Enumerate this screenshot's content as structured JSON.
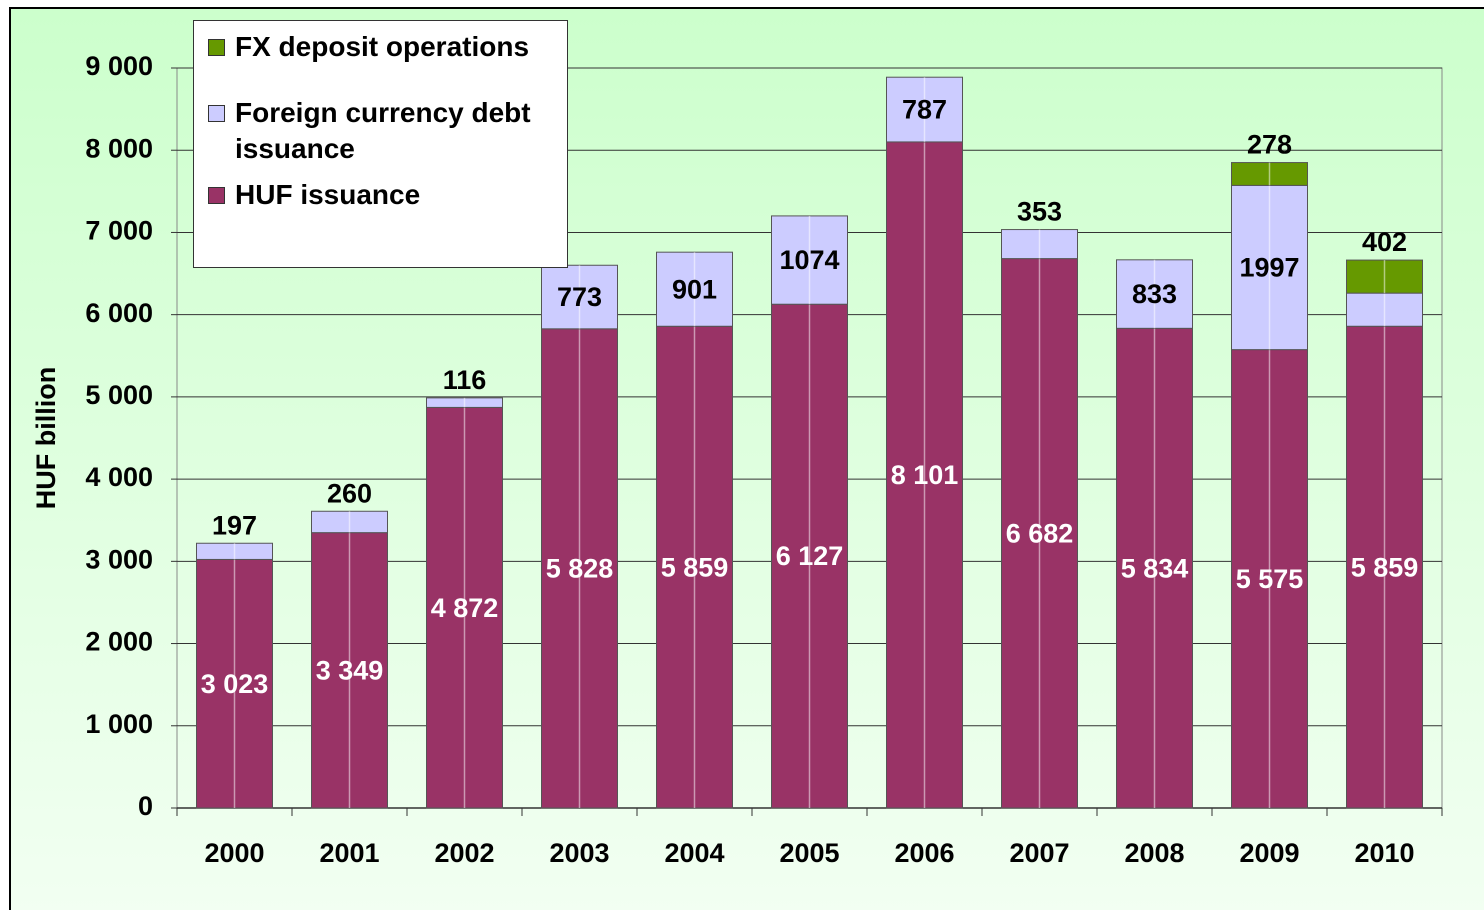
{
  "chart_data": {
    "type": "stacked-bar",
    "y_axis_label": "HUF billion",
    "categories": [
      "2000",
      "2001",
      "2002",
      "2003",
      "2004",
      "2005",
      "2006",
      "2007",
      "2008",
      "2009",
      "2010"
    ],
    "series": [
      {
        "name": "HUF issuance",
        "color": "#993366",
        "values": [
          3023,
          3349,
          4872,
          5828,
          5859,
          6127,
          8101,
          6682,
          5834,
          5575,
          5859
        ],
        "value_labels": [
          "3 023",
          "3 349",
          "4 872",
          "5 828",
          "5 859",
          "6 127",
          "8 101",
          "6 682",
          "5 834",
          "5 575",
          "5 859"
        ]
      },
      {
        "name": "Foreign currency debt issuance",
        "color": "#ccccff",
        "values": [
          197,
          260,
          116,
          773,
          901,
          1074,
          787,
          353,
          833,
          1997,
          403
        ]
      },
      {
        "name": "FX deposit operations",
        "color": "#669900",
        "values": [
          null,
          null,
          null,
          null,
          null,
          null,
          null,
          null,
          null,
          278,
          402
        ]
      }
    ],
    "ylim": [
      0,
      9000
    ],
    "yticks": [
      0,
      {
        "value": 1000,
        "label": "1 000"
      },
      {
        "value": 2000,
        "label": "2 000"
      },
      {
        "value": 3000,
        "label": "3 000"
      },
      {
        "value": 4000,
        "label": "4 000"
      },
      {
        "value": 5000,
        "label": "5 000"
      },
      {
        "value": 6000,
        "label": "6 000"
      },
      {
        "value": 7000,
        "label": "7 000"
      },
      {
        "value": 8000,
        "label": "8 000"
      },
      {
        "value": 9000,
        "label": "9 000"
      }
    ],
    "grid": true
  }
}
